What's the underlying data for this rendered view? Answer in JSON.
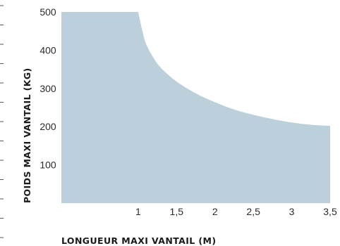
{
  "chart_data": {
    "type": "area",
    "title": "",
    "xlabel": "LONGUEUR MAXI VANTAIL (M)",
    "ylabel": "POIDS MAXI VANTAIL (KG)",
    "xlim": [
      0,
      3.5
    ],
    "ylim": [
      0,
      500
    ],
    "x_ticks": [
      "1",
      "1,5",
      "2",
      "2,5",
      "3",
      "3,5"
    ],
    "x_tick_values": [
      1,
      1.5,
      2,
      2.5,
      3,
      3.5
    ],
    "y_ticks": [
      "500",
      "400",
      "300",
      "200",
      "100"
    ],
    "y_tick_values": [
      500,
      400,
      300,
      200,
      100
    ],
    "grid": false,
    "fill_color": "#bcd0dc",
    "series": [
      {
        "x": [
          0,
          1,
          1.05,
          1.1,
          1.2,
          1.3,
          1.5,
          1.75,
          2,
          2.25,
          2.5,
          2.75,
          3,
          3.25,
          3.5
        ],
        "y": [
          500,
          500,
          455,
          418,
          380,
          353,
          318,
          287,
          264,
          245,
          231,
          220,
          211,
          205,
          202
        ]
      }
    ]
  }
}
